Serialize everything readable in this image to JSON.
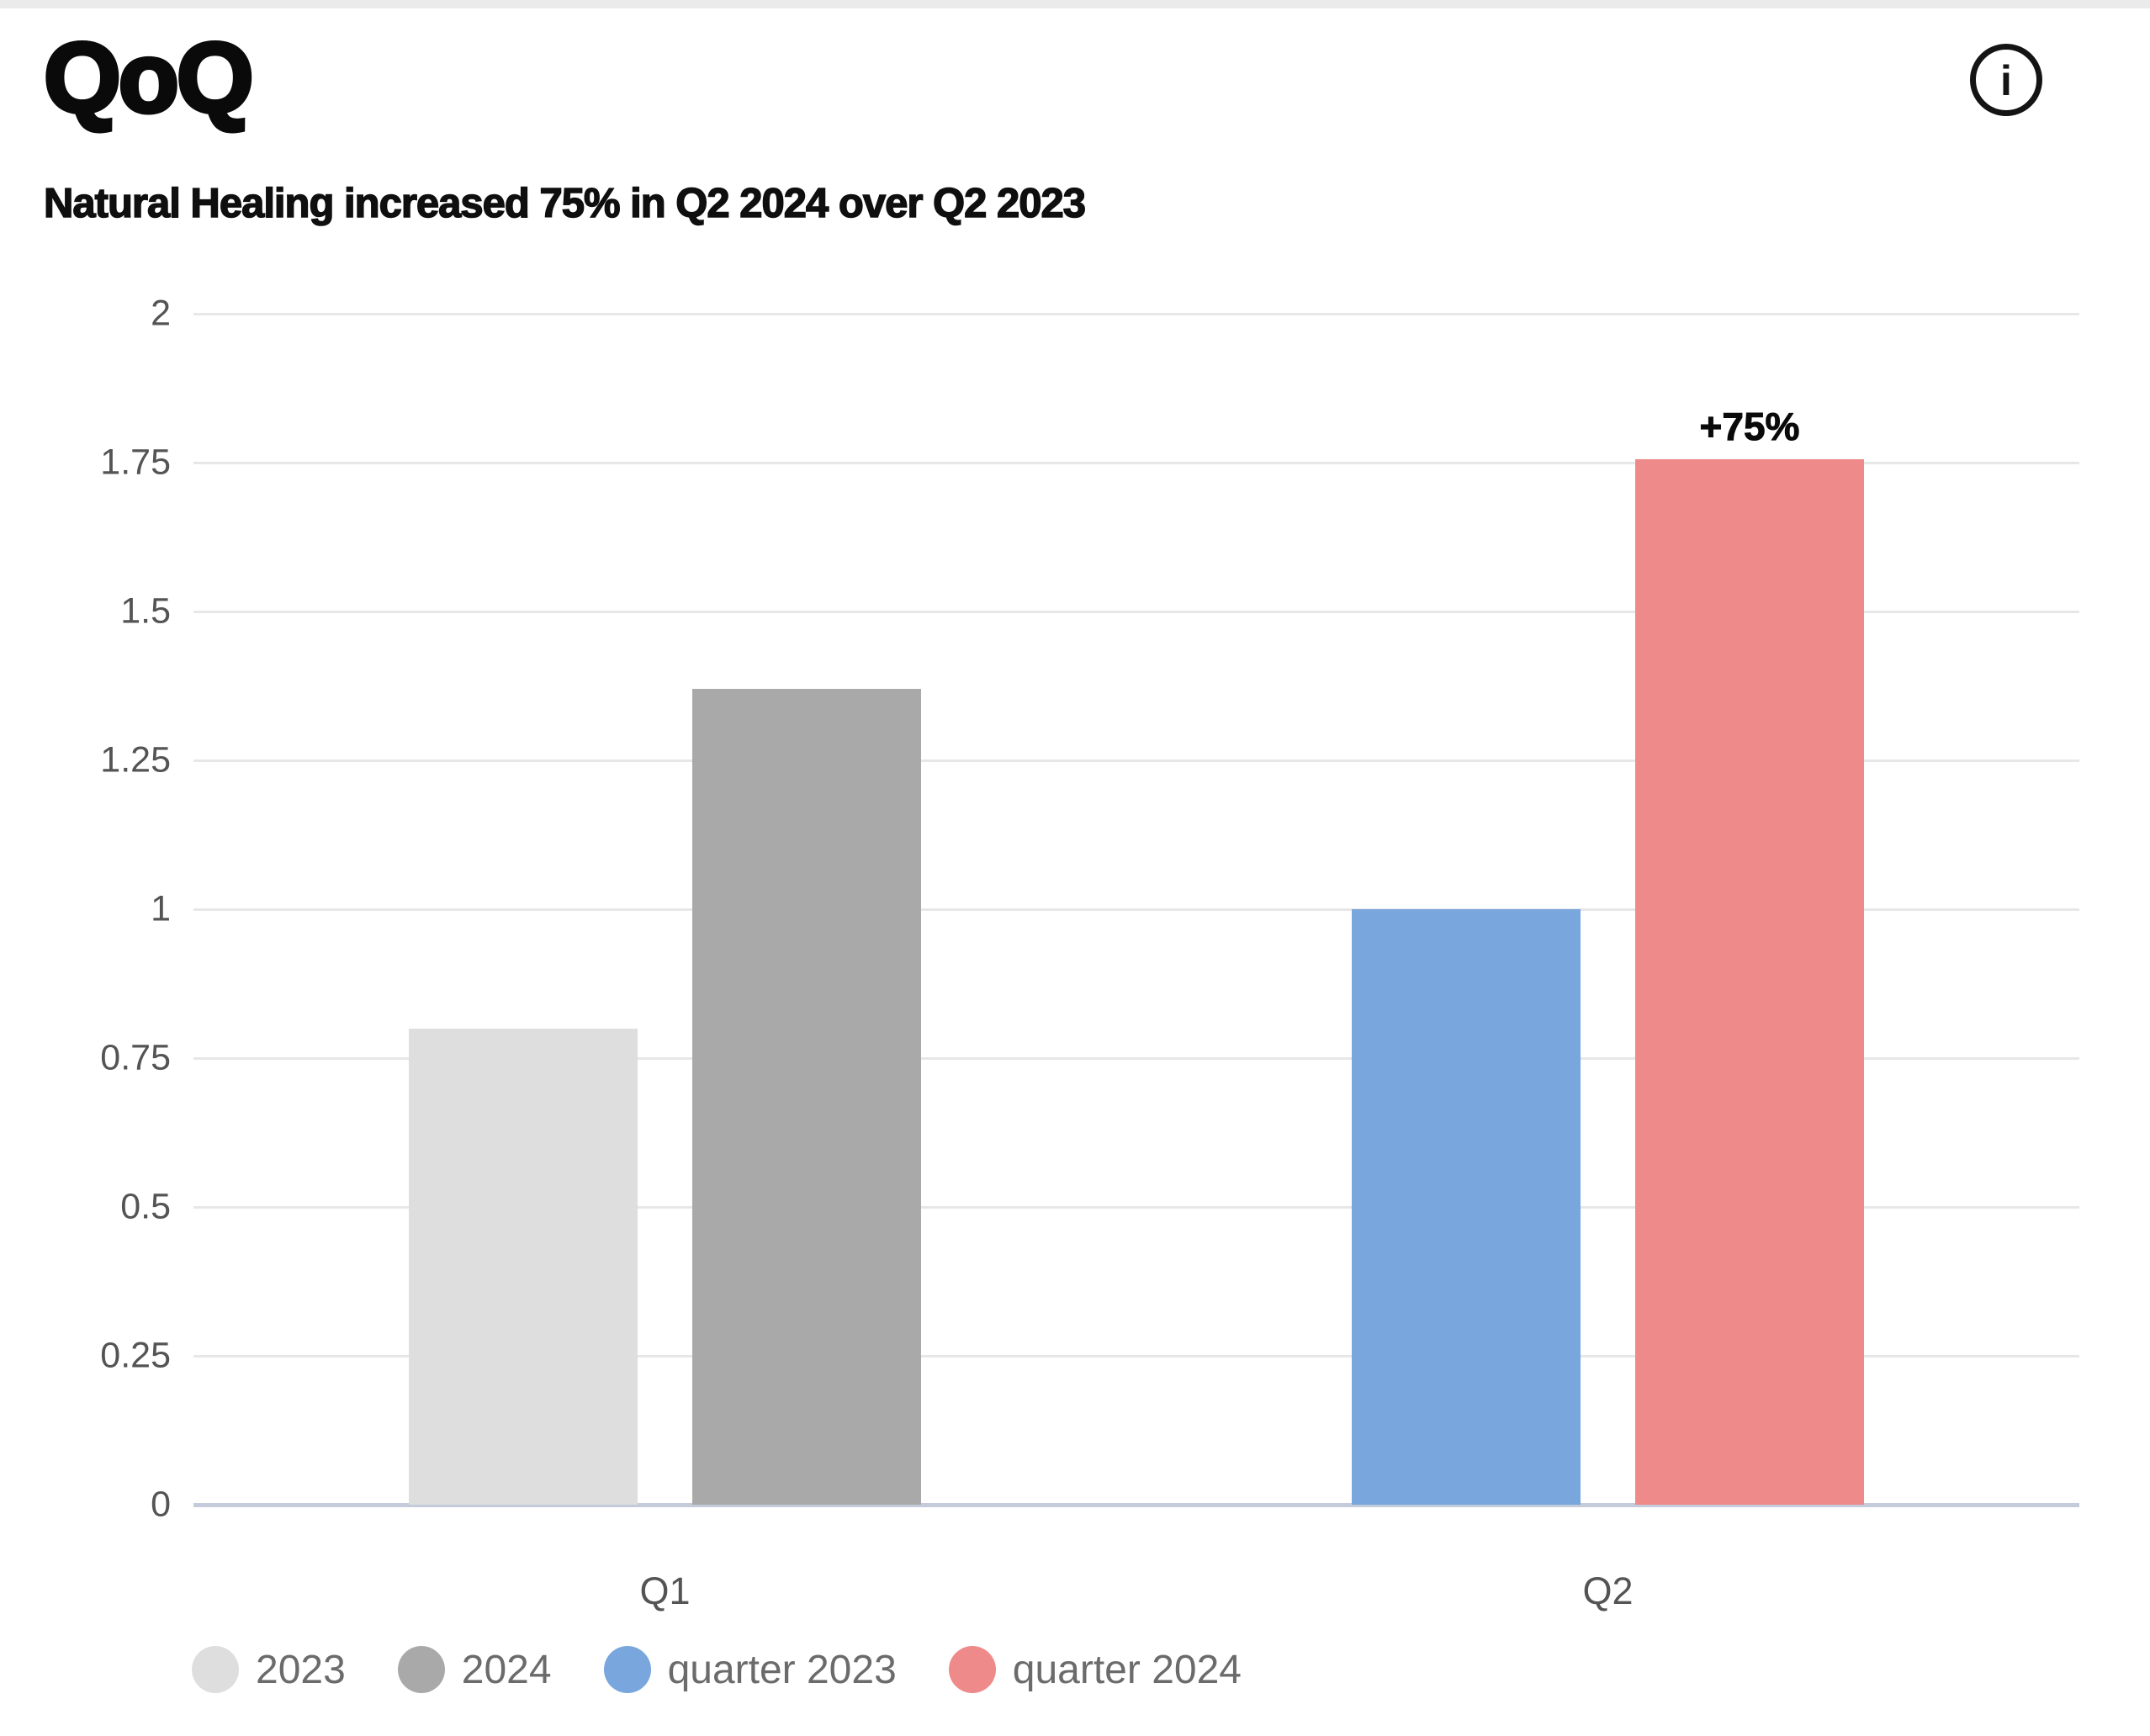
{
  "header": {
    "logo_text": "QoQ",
    "info_glyph": "i",
    "subtitle": "Natural Healing increased 75% in Q2 2024 over Q2 2023"
  },
  "chart_data": {
    "type": "bar",
    "title": "QoQ",
    "subtitle": "Natural Healing increased 75% in Q2 2024 over Q2 2023",
    "categories": [
      "Q1",
      "Q2"
    ],
    "series": [
      {
        "name": "2023",
        "color": "#dedede",
        "values": [
          0.8,
          null
        ]
      },
      {
        "name": "2024",
        "color": "#a9a9a9",
        "values": [
          1.37,
          null
        ]
      },
      {
        "name": "quarter 2023",
        "color": "#78a6dd",
        "values": [
          null,
          1.0
        ]
      },
      {
        "name": "quarter 2024",
        "color": "#ee8a8a",
        "values": [
          null,
          1.755
        ]
      }
    ],
    "annotations": [
      {
        "text": "+75%",
        "category": "Q2",
        "series": "quarter 2024"
      }
    ],
    "y_tick_labels": [
      "0",
      "0.25",
      "0.5",
      "0.75",
      "1",
      "1.25",
      "1.5",
      "1.75",
      "2"
    ],
    "ylim": [
      0,
      2
    ],
    "grid": true,
    "gridline_color": "#e7e7e7",
    "axis_line_color": "#c4cbda",
    "legend_position": "bottom"
  }
}
